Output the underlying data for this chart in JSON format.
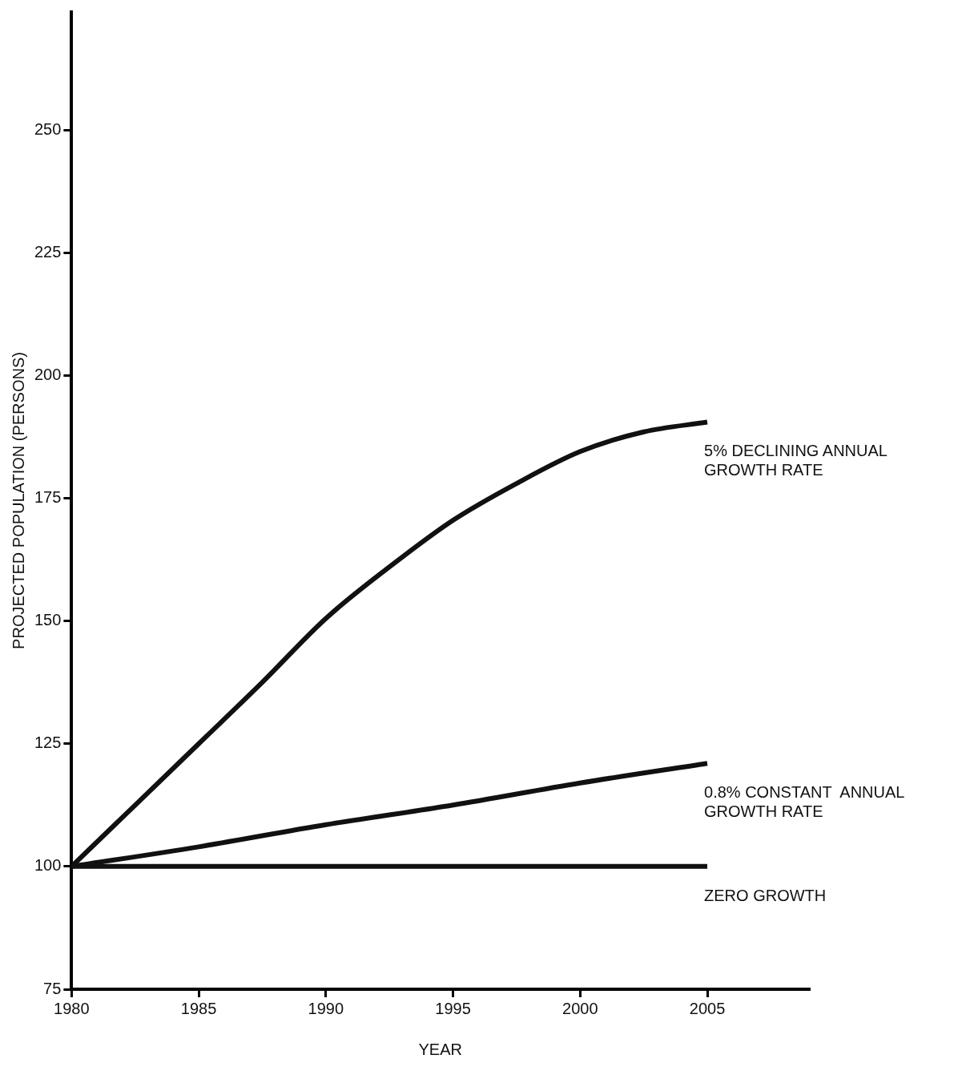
{
  "chart_data": {
    "type": "line",
    "xlabel": "YEAR",
    "ylabel": "PROJECTED POPULATION (PERSONS)",
    "xlim": [
      1980,
      2009
    ],
    "ylim": [
      75,
      274
    ],
    "xticks": [
      1980,
      1985,
      1990,
      1995,
      2000,
      2005
    ],
    "yticks": [
      75,
      100,
      125,
      150,
      175,
      200,
      225,
      250
    ],
    "grid": false,
    "legend": false,
    "marker": "none",
    "line_style": "solid",
    "series": [
      {
        "name": "5% DECLINING ANNUAL\nGROWTH RATE",
        "color": "#111111",
        "x": [
          1980,
          1982.5,
          1985,
          1987.5,
          1990,
          1992.5,
          1995,
          1997.5,
          2000,
          2002.5,
          2005
        ],
        "values": [
          100,
          112.5,
          125,
          137.5,
          150.5,
          161,
          170.5,
          178,
          184.5,
          188.5,
          190.5
        ]
      },
      {
        "name": "0.8% CONSTANT  ANNUAL\nGROWTH RATE",
        "color": "#111111",
        "x": [
          1980,
          1985,
          1990,
          1995,
          2000,
          2005
        ],
        "values": [
          100,
          104,
          108.5,
          112.5,
          117,
          121
        ]
      },
      {
        "name": "ZERO GROWTH",
        "color": "#111111",
        "x": [
          1980,
          2005
        ],
        "values": [
          100,
          100
        ]
      }
    ]
  }
}
